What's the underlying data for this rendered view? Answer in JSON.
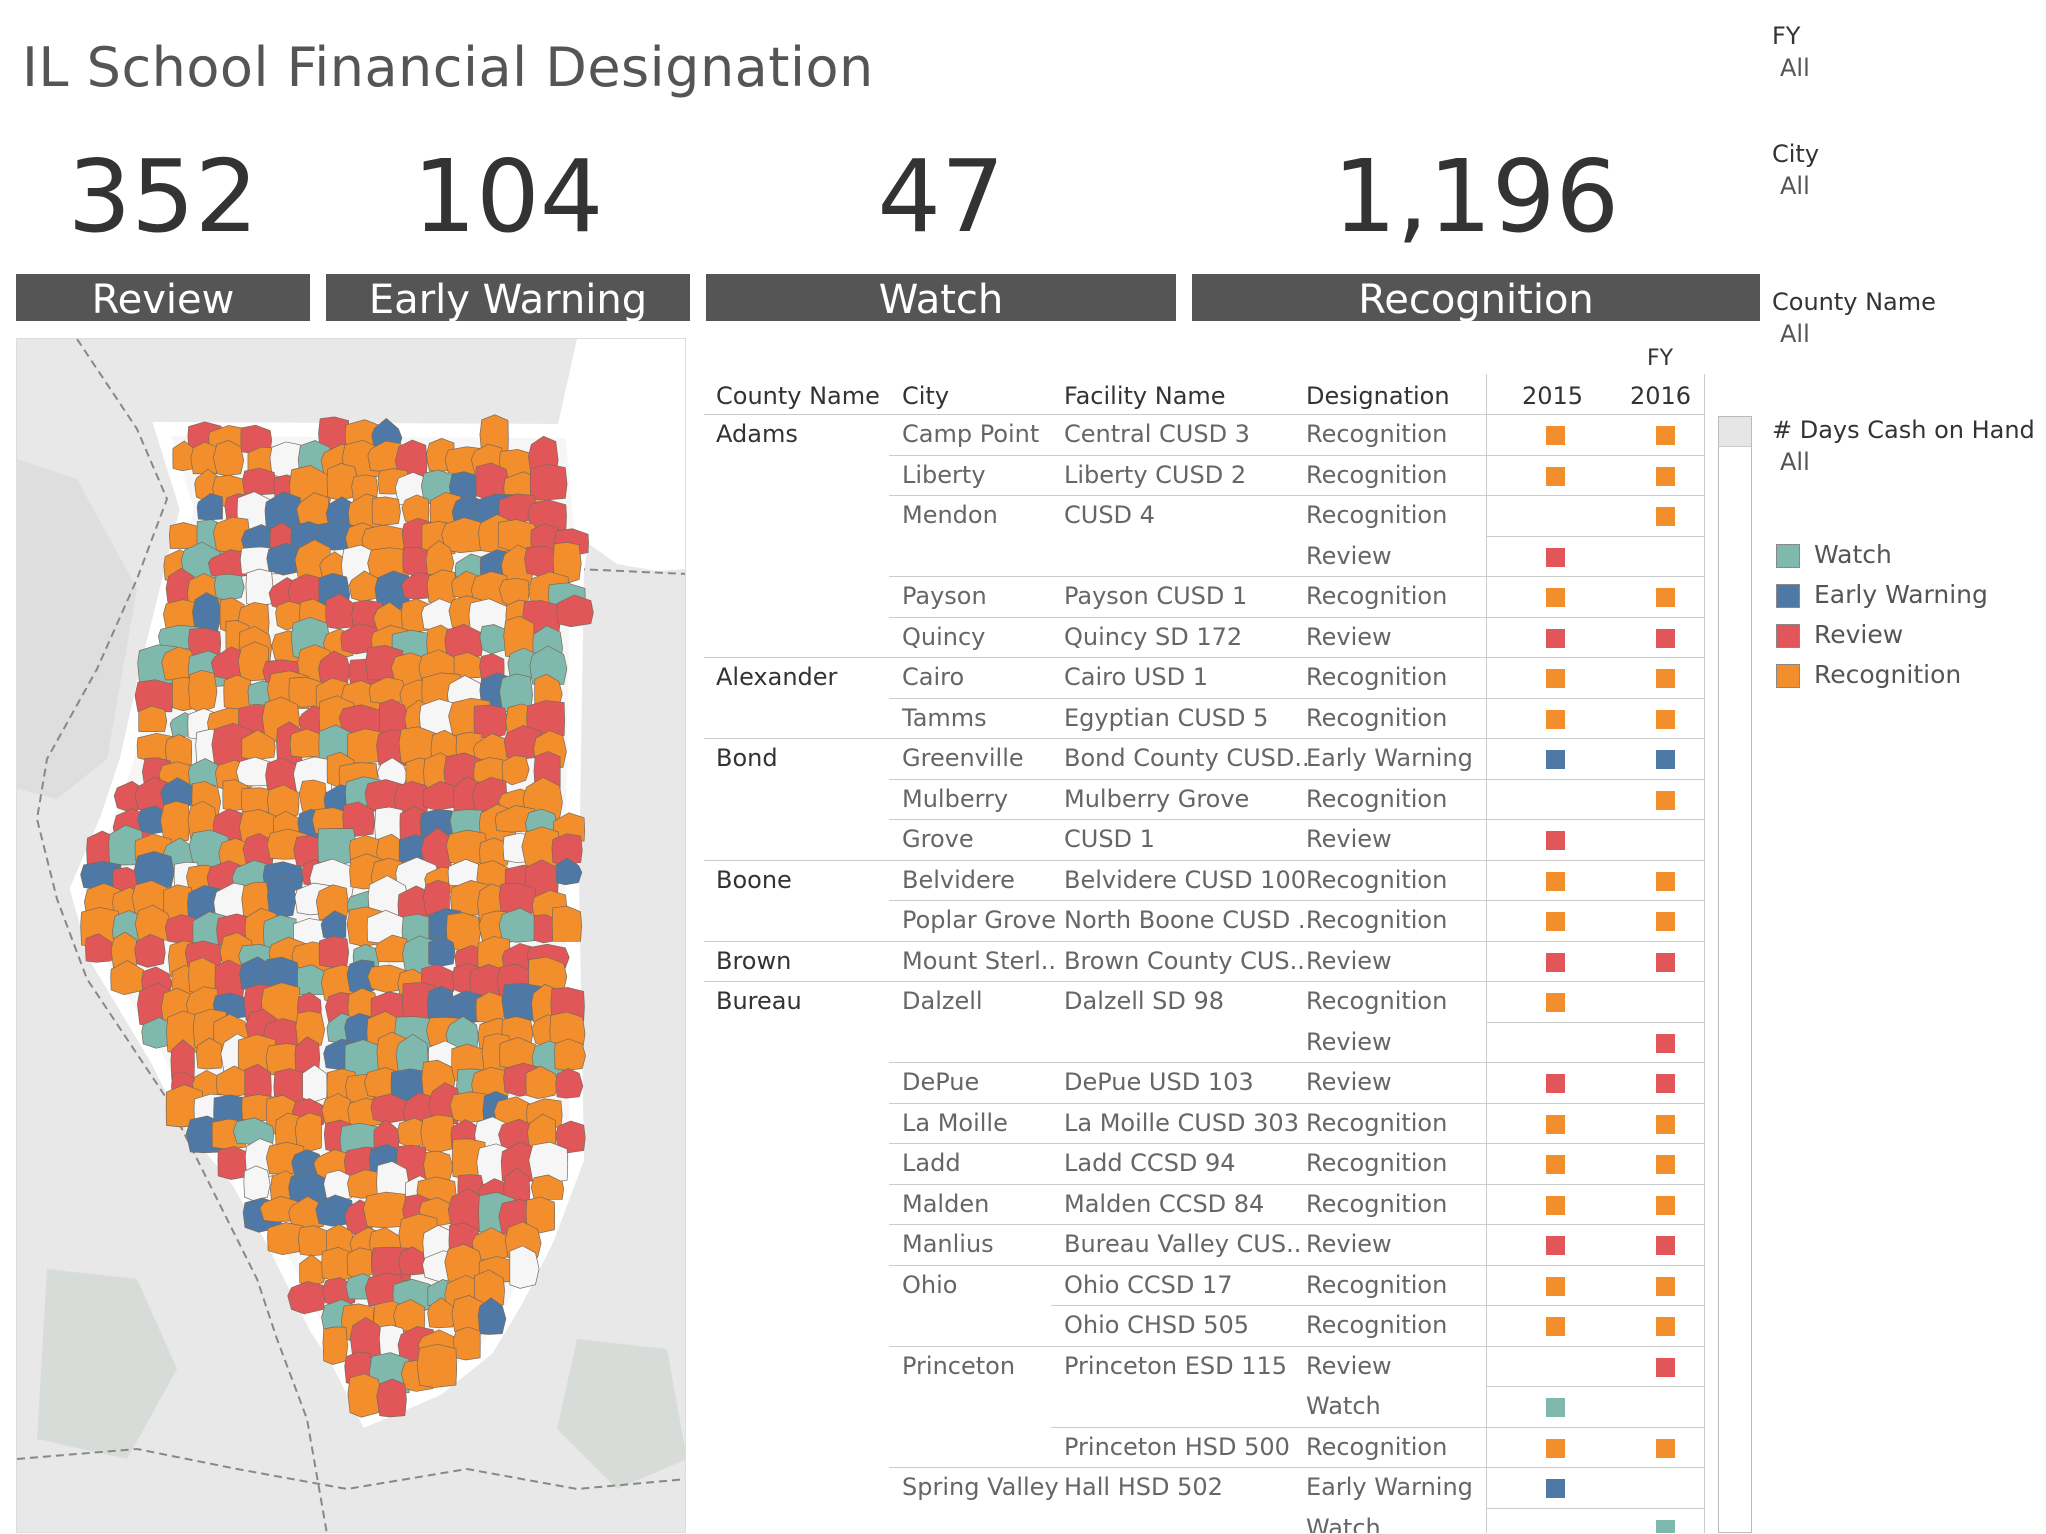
{
  "title": "IL School Financial Designation",
  "colors": {
    "Watch": "#7fb8ad",
    "Early Warning": "#4e79a7",
    "Review": "#e15759",
    "Recognition": "#f28e2b",
    "header_bar": "#555555"
  },
  "kpis": [
    {
      "value": "352",
      "label": "Review"
    },
    {
      "value": "104",
      "label": "Early Warning"
    },
    {
      "value": "47",
      "label": "Watch"
    },
    {
      "value": "1,196",
      "label": "Recognition"
    }
  ],
  "filters": [
    {
      "label": "FY",
      "value": "All"
    },
    {
      "label": "City",
      "value": "All"
    },
    {
      "label": "County Name",
      "value": "All"
    },
    {
      "label": "# Days Cash on Hand",
      "value": "All"
    }
  ],
  "legend": [
    {
      "label": "Watch",
      "color": "#7fb8ad"
    },
    {
      "label": "Early Warning",
      "color": "#4e79a7"
    },
    {
      "label": "Review",
      "color": "#e15759"
    },
    {
      "label": "Recognition",
      "color": "#f28e2b"
    }
  ],
  "table": {
    "fy_header": "FY",
    "columns": [
      "County Name",
      "City",
      "Facility Name",
      "Designation",
      "2015",
      "2016"
    ],
    "rows": [
      {
        "county": "Adams",
        "city": "Camp Point",
        "facility": "Central CUSD 3",
        "designation": "Recognition",
        "y2015": "Recognition",
        "y2016": "Recognition"
      },
      {
        "county": "",
        "city": "Liberty",
        "facility": "Liberty CUSD 2",
        "designation": "Recognition",
        "y2015": "Recognition",
        "y2016": "Recognition"
      },
      {
        "county": "",
        "city": "Mendon",
        "facility": "CUSD 4",
        "designation": "Recognition",
        "y2015": "",
        "y2016": "Recognition"
      },
      {
        "county": "",
        "city": "",
        "facility": "",
        "designation": "Review",
        "y2015": "Review",
        "y2016": ""
      },
      {
        "county": "",
        "city": "Payson",
        "facility": "Payson CUSD 1",
        "designation": "Recognition",
        "y2015": "Recognition",
        "y2016": "Recognition"
      },
      {
        "county": "",
        "city": "Quincy",
        "facility": "Quincy SD 172",
        "designation": "Review",
        "y2015": "Review",
        "y2016": "Review"
      },
      {
        "county": "Alexander",
        "city": "Cairo",
        "facility": "Cairo USD 1",
        "designation": "Recognition",
        "y2015": "Recognition",
        "y2016": "Recognition"
      },
      {
        "county": "",
        "city": "Tamms",
        "facility": "Egyptian CUSD 5",
        "designation": "Recognition",
        "y2015": "Recognition",
        "y2016": "Recognition"
      },
      {
        "county": "Bond",
        "city": "Greenville",
        "facility": "Bond County CUSD..",
        "designation": "Early Warning",
        "y2015": "Early Warning",
        "y2016": "Early Warning"
      },
      {
        "county": "",
        "city": "Mulberry",
        "facility": "Mulberry Grove",
        "designation": "Recognition",
        "y2015": "",
        "y2016": "Recognition"
      },
      {
        "county": "",
        "city": "Grove",
        "facility": "CUSD 1",
        "designation": "Review",
        "y2015": "Review",
        "y2016": ""
      },
      {
        "county": "Boone",
        "city": "Belvidere",
        "facility": "Belvidere CUSD 100",
        "designation": "Recognition",
        "y2015": "Recognition",
        "y2016": "Recognition"
      },
      {
        "county": "",
        "city": "Poplar Grove",
        "facility": "North Boone CUSD ..",
        "designation": "Recognition",
        "y2015": "Recognition",
        "y2016": "Recognition"
      },
      {
        "county": "Brown",
        "city": "Mount Sterl..",
        "facility": "Brown County CUS..",
        "designation": "Review",
        "y2015": "Review",
        "y2016": "Review"
      },
      {
        "county": "Bureau",
        "city": "Dalzell",
        "facility": "Dalzell SD 98",
        "designation": "Recognition",
        "y2015": "Recognition",
        "y2016": ""
      },
      {
        "county": "",
        "city": "",
        "facility": "",
        "designation": "Review",
        "y2015": "",
        "y2016": "Review"
      },
      {
        "county": "",
        "city": "DePue",
        "facility": "DePue USD 103",
        "designation": "Review",
        "y2015": "Review",
        "y2016": "Review"
      },
      {
        "county": "",
        "city": "La Moille",
        "facility": "La Moille CUSD 303",
        "designation": "Recognition",
        "y2015": "Recognition",
        "y2016": "Recognition"
      },
      {
        "county": "",
        "city": "Ladd",
        "facility": "Ladd CCSD 94",
        "designation": "Recognition",
        "y2015": "Recognition",
        "y2016": "Recognition"
      },
      {
        "county": "",
        "city": "Malden",
        "facility": "Malden CCSD 84",
        "designation": "Recognition",
        "y2015": "Recognition",
        "y2016": "Recognition"
      },
      {
        "county": "",
        "city": "Manlius",
        "facility": "Bureau Valley CUS..",
        "designation": "Review",
        "y2015": "Review",
        "y2016": "Review"
      },
      {
        "county": "",
        "city": "Ohio",
        "facility": "Ohio CCSD 17",
        "designation": "Recognition",
        "y2015": "Recognition",
        "y2016": "Recognition"
      },
      {
        "county": "",
        "city": "",
        "facility": "Ohio CHSD 505",
        "designation": "Recognition",
        "y2015": "Recognition",
        "y2016": "Recognition"
      },
      {
        "county": "",
        "city": "Princeton",
        "facility": "Princeton ESD 115",
        "designation": "Review",
        "y2015": "",
        "y2016": "Review"
      },
      {
        "county": "",
        "city": "",
        "facility": "",
        "designation": "Watch",
        "y2015": "Watch",
        "y2016": ""
      },
      {
        "county": "",
        "city": "",
        "facility": "Princeton HSD 500",
        "designation": "Recognition",
        "y2015": "Recognition",
        "y2016": "Recognition"
      },
      {
        "county": "",
        "city": "Spring Valley",
        "facility": "Hall HSD 502",
        "designation": "Early Warning",
        "y2015": "Early Warning",
        "y2016": ""
      },
      {
        "county": "",
        "city": "",
        "facility": "",
        "designation": "Watch",
        "y2015": "",
        "y2016": "Watch"
      }
    ]
  }
}
